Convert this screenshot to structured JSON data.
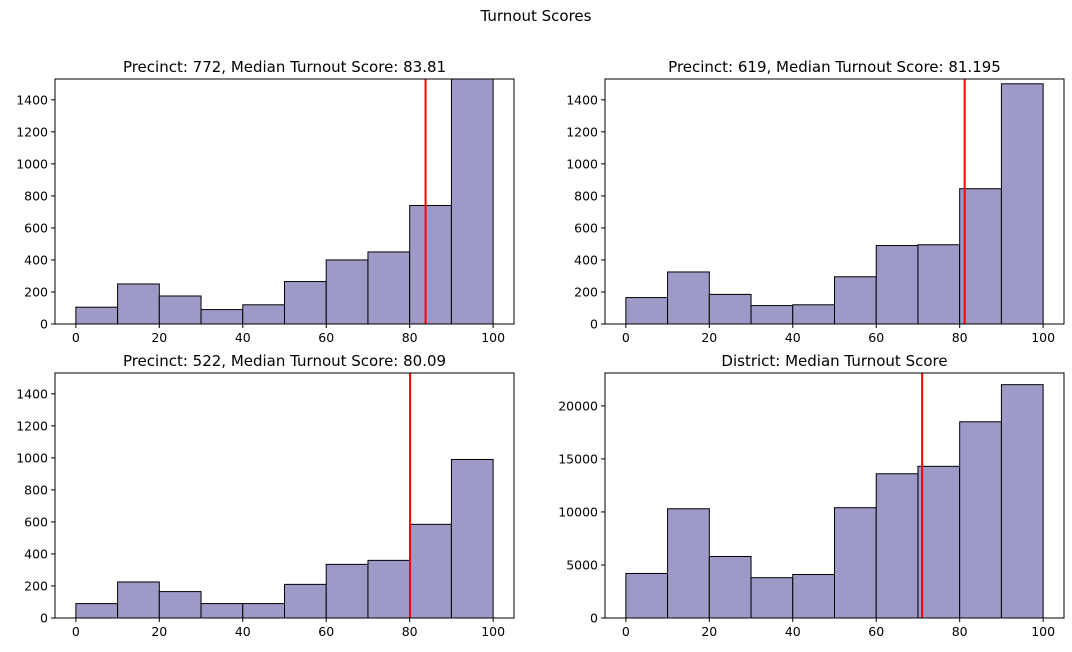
{
  "figure": {
    "suptitle": "Turnout Scores",
    "bar_color": "#9e9ac8",
    "bar_edge_color": "#000000",
    "median_line_color": "#ff0000"
  },
  "chart_data": [
    {
      "type": "bar",
      "title": "Precinct: 772, Median Turnout Score: 83.81",
      "bin_edges": [
        0,
        10,
        20,
        30,
        40,
        50,
        60,
        70,
        80,
        90,
        100
      ],
      "values": [
        105,
        250,
        175,
        90,
        120,
        265,
        400,
        450,
        740,
        1530
      ],
      "median": 83.81,
      "xlim": [
        -5,
        105
      ],
      "ylim": [
        0,
        1530
      ],
      "xticks": [
        0,
        20,
        40,
        60,
        80,
        100
      ],
      "yticks": [
        0,
        200,
        400,
        600,
        800,
        1000,
        1200,
        1400
      ],
      "xlabel": "",
      "ylabel": "",
      "grid": false
    },
    {
      "type": "bar",
      "title": "Precinct: 619, Median Turnout Score: 81.195",
      "bin_edges": [
        0,
        10,
        20,
        30,
        40,
        50,
        60,
        70,
        80,
        90,
        100
      ],
      "values": [
        165,
        325,
        185,
        115,
        120,
        295,
        490,
        495,
        845,
        1500
      ],
      "median": 81.195,
      "xlim": [
        -5,
        105
      ],
      "ylim": [
        0,
        1530
      ],
      "xticks": [
        0,
        20,
        40,
        60,
        80,
        100
      ],
      "yticks": [
        0,
        200,
        400,
        600,
        800,
        1000,
        1200,
        1400
      ],
      "xlabel": "",
      "ylabel": "",
      "grid": false
    },
    {
      "type": "bar",
      "title": "Precinct: 522, Median Turnout Score: 80.09",
      "bin_edges": [
        0,
        10,
        20,
        30,
        40,
        50,
        60,
        70,
        80,
        90,
        100
      ],
      "values": [
        90,
        225,
        165,
        90,
        90,
        210,
        335,
        360,
        585,
        990
      ],
      "median": 80.09,
      "xlim": [
        -5,
        105
      ],
      "ylim": [
        0,
        1530
      ],
      "xticks": [
        0,
        20,
        40,
        60,
        80,
        100
      ],
      "yticks": [
        0,
        200,
        400,
        600,
        800,
        1000,
        1200,
        1400
      ],
      "xlabel": "",
      "ylabel": "",
      "grid": false
    },
    {
      "type": "bar",
      "title": "District: Median Turnout Score",
      "bin_edges": [
        0,
        10,
        20,
        30,
        40,
        50,
        60,
        70,
        80,
        90,
        100
      ],
      "values": [
        4200,
        10300,
        5800,
        3800,
        4100,
        10400,
        13600,
        14300,
        18500,
        22000
      ],
      "median": 71,
      "xlim": [
        -5,
        105
      ],
      "ylim": [
        0,
        23100
      ],
      "xticks": [
        0,
        20,
        40,
        60,
        80,
        100
      ],
      "yticks": [
        0,
        5000,
        10000,
        15000,
        20000
      ],
      "xlabel": "",
      "ylabel": "",
      "grid": false
    }
  ]
}
